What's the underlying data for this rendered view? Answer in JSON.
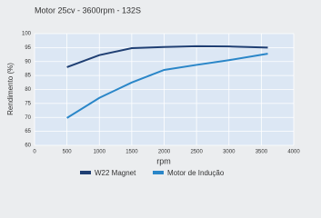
{
  "chart_data": {
    "type": "line",
    "title": "Motor 25cv - 3600rpm - 132S",
    "x_label": "rpm",
    "y_label": "Rendimento (%)",
    "x": [
      500,
      1000,
      1500,
      2000,
      2500,
      3000,
      3600
    ],
    "series": [
      {
        "name": "W22 Magnet",
        "color": "#1f3f73",
        "values": [
          88,
          92.3,
          94.8,
          95.2,
          95.5,
          95.4,
          95
        ]
      },
      {
        "name": "Motor de Indução",
        "color": "#2a86c8",
        "values": [
          69.8,
          77,
          82.5,
          87,
          88.8,
          90.5,
          92.8
        ]
      }
    ],
    "xlim": [
      0,
      4000
    ],
    "xticks": [
      0,
      500,
      1000,
      1500,
      2000,
      2500,
      3000,
      3500,
      4000
    ],
    "ylim": [
      60,
      100
    ],
    "yticks": [
      60,
      65,
      70,
      75,
      80,
      85,
      90,
      95,
      100
    ],
    "grid": true
  }
}
